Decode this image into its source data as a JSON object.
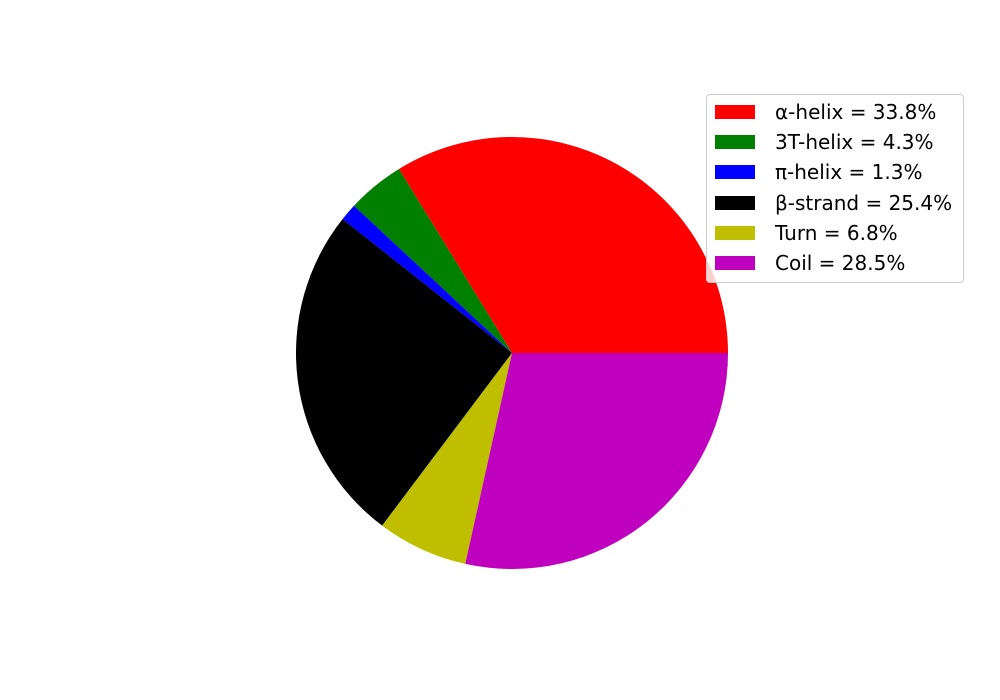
{
  "chart_data": {
    "type": "pie",
    "categories": [
      "α-helix",
      "3T-helix",
      "π-helix",
      "β-strand",
      "Turn",
      "Coil"
    ],
    "values": [
      33.8,
      4.3,
      1.3,
      25.4,
      6.8,
      28.5
    ],
    "legend_labels": [
      "α-helix = 33.8%",
      "3T-helix = 4.3%",
      "π-helix = 1.3%",
      "β-strand = 25.4%",
      "Turn = 6.8%",
      "Coil = 28.5%"
    ],
    "colors": [
      "#ff0000",
      "#008000",
      "#0000ff",
      "#000000",
      "#bfbf00",
      "#bf00bf"
    ],
    "start_angle_deg": 0,
    "direction": "counterclockwise",
    "legend_position": "top-right"
  }
}
